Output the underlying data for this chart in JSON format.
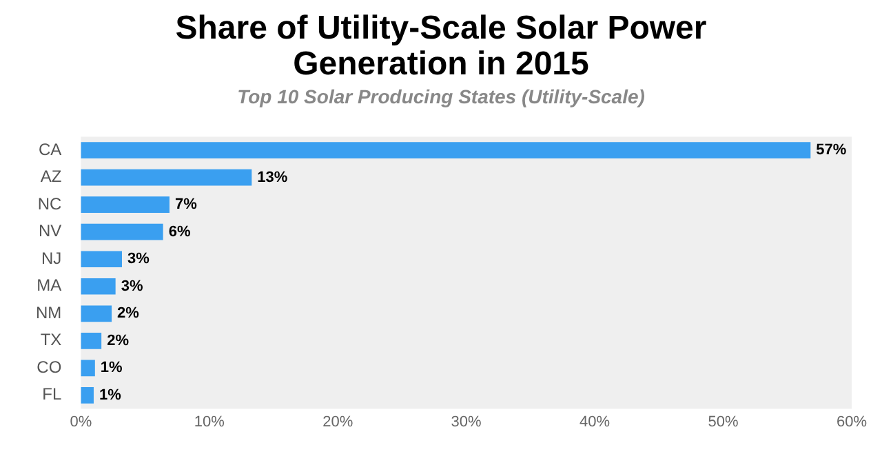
{
  "chart_data": {
    "type": "bar",
    "orientation": "horizontal",
    "title": "Share of Utility-Scale Solar Power Generation in 2015",
    "subtitle": "Top 10 Solar Producing States (Utility-Scale)",
    "categories": [
      "CA",
      "AZ",
      "NC",
      "NV",
      "NJ",
      "MA",
      "NM",
      "TX",
      "CO",
      "FL"
    ],
    "values": [
      56.8,
      13.3,
      6.9,
      6.4,
      3.2,
      2.7,
      2.4,
      1.6,
      1.1,
      1.0
    ],
    "value_labels": [
      "57%",
      "13%",
      "7%",
      "6%",
      "3%",
      "3%",
      "2%",
      "2%",
      "1%",
      "1%"
    ],
    "color": "#3a9ff0",
    "xlim": [
      0,
      60
    ],
    "xticks": [
      {
        "value": 0,
        "label": "0%"
      },
      {
        "value": 10,
        "label": "10%"
      },
      {
        "value": 20,
        "label": "20%"
      },
      {
        "value": 30,
        "label": "30%"
      },
      {
        "value": 40,
        "label": "40%"
      },
      {
        "value": 50,
        "label": "50%"
      },
      {
        "value": 60,
        "label": "60%"
      }
    ],
    "grid": false,
    "legend": false
  }
}
